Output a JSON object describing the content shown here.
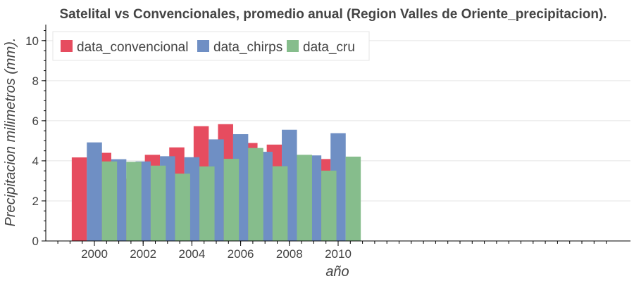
{
  "chart_data": {
    "type": "bar",
    "title": "Satelital vs Convencionales, promedio anual (Region Valles de Oriente_precipitacion).",
    "xlabel": "año",
    "ylabel": "Precipitacion milimetros (mm).",
    "categories": [
      "2000",
      "2001",
      "2002",
      "2003",
      "2004",
      "2005",
      "2006",
      "2007",
      "2008",
      "2009",
      "2010"
    ],
    "x_tick_labels": [
      "2000",
      "2002",
      "2004",
      "2006",
      "2008",
      "2010"
    ],
    "y_ticks": [
      "0",
      "2",
      "4",
      "6",
      "8",
      "10"
    ],
    "ylim": [
      0,
      10.8
    ],
    "grid": true,
    "legend_position": "top-left",
    "series": [
      {
        "name": "data_convencional",
        "color": "#e64c5f",
        "values": [
          4.17,
          4.4,
          3.11,
          4.3,
          4.67,
          5.73,
          5.83,
          4.89,
          4.81,
          4.04,
          4.09
        ]
      },
      {
        "name": "data_chirps",
        "color": "#6f8fc4",
        "values": [
          4.92,
          4.08,
          3.97,
          4.23,
          4.18,
          5.07,
          5.33,
          4.45,
          5.55,
          4.27,
          5.38
        ]
      },
      {
        "name": "data_cru",
        "color": "#86bd8c",
        "values": [
          3.97,
          3.95,
          3.76,
          3.36,
          3.72,
          4.1,
          4.64,
          3.73,
          4.3,
          3.51,
          4.21
        ]
      }
    ]
  }
}
